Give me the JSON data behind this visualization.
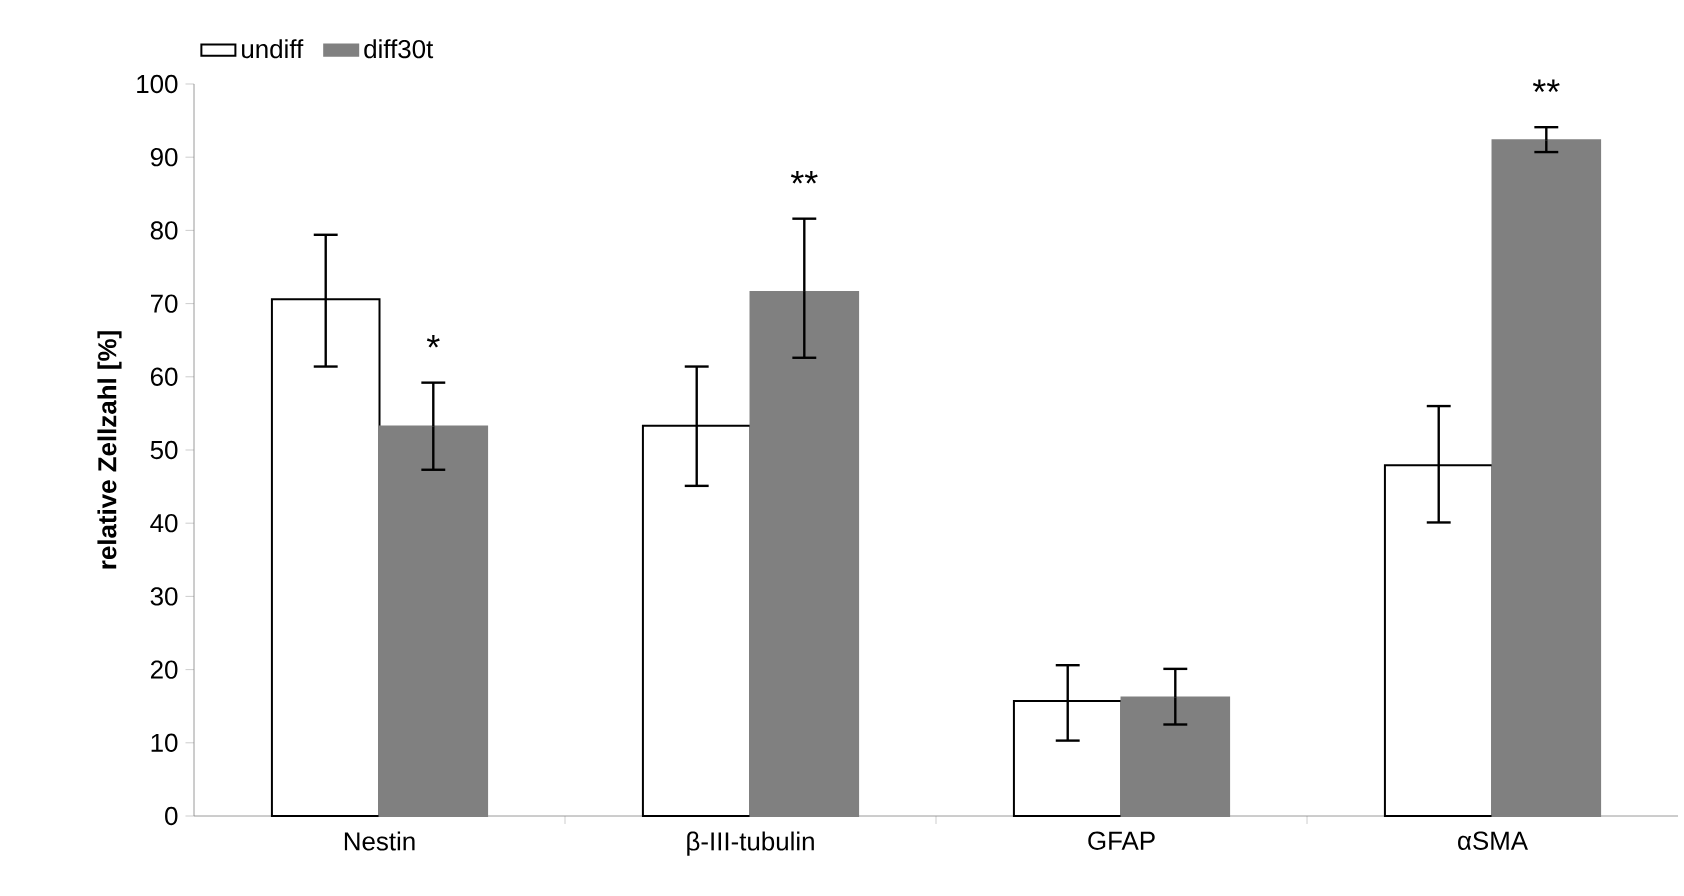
{
  "chart_data": {
    "type": "bar",
    "ylabel": "relative Zellzahl [%]",
    "categories": [
      "Nestin",
      "β-III-tubulin",
      "GFAP",
      "αSMA"
    ],
    "series": [
      {
        "name": "undiff",
        "color": "#ffffff",
        "values": [
          70.6,
          53.3,
          15.7,
          47.9
        ],
        "errors": [
          [
            61.4,
            79.4
          ],
          [
            45.1,
            61.4
          ],
          [
            10.3,
            20.6
          ],
          [
            40.1,
            56.0
          ]
        ]
      },
      {
        "name": "diff30t",
        "color": "#808080",
        "values": [
          53.2,
          71.6,
          16.2,
          92.3
        ],
        "errors": [
          [
            47.3,
            59.2
          ],
          [
            62.6,
            81.6
          ],
          [
            12.5,
            20.1
          ],
          [
            90.7,
            94.1
          ]
        ],
        "value_labels": [
          "*",
          "**",
          null,
          "**"
        ]
      }
    ],
    "ylim": [
      0,
      100
    ],
    "yticks": [
      0,
      10,
      20,
      30,
      40,
      50,
      60,
      70,
      80,
      90,
      100
    ],
    "grid": false,
    "legend": "top left"
  }
}
